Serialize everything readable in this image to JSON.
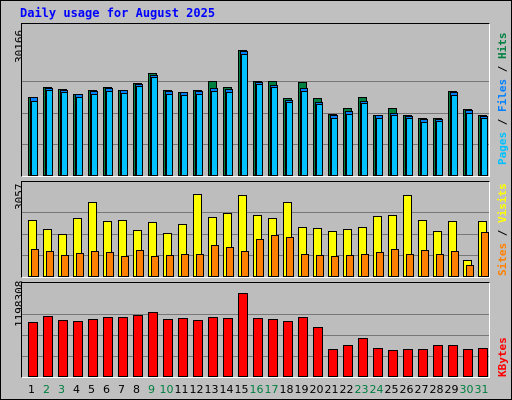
{
  "title": "Daily usage for August 2025",
  "colors": {
    "title": "#0000ff",
    "hits": "#008040",
    "files": "#0080ff",
    "pages": "#00c0ff",
    "visits": "#ffff00",
    "sites": "#ff8000",
    "kbytes": "#ff0000",
    "weekend_day": "#008040",
    "weekday": "#000000"
  },
  "legends": {
    "hits_panel": [
      {
        "text": "Pages",
        "color": "#00c0ff"
      },
      {
        "text": " / ",
        "color": "#000000"
      },
      {
        "text": "Files",
        "color": "#0080ff"
      },
      {
        "text": " / ",
        "color": "#000000"
      },
      {
        "text": "Hits",
        "color": "#008040"
      }
    ],
    "visits_panel": [
      {
        "text": "Sites",
        "color": "#ff8000"
      },
      {
        "text": " / ",
        "color": "#000000"
      },
      {
        "text": "Visits",
        "color": "#ffff00"
      }
    ],
    "kbytes_panel": [
      {
        "text": "KBytes",
        "color": "#ff0000"
      }
    ]
  },
  "chart_data": {
    "type": "bar",
    "title": "Daily usage for August 2025",
    "days": [
      "1",
      "2",
      "3",
      "4",
      "5",
      "6",
      "7",
      "8",
      "9",
      "10",
      "11",
      "12",
      "13",
      "14",
      "15",
      "16",
      "17",
      "18",
      "19",
      "20",
      "21",
      "22",
      "23",
      "24",
      "25",
      "26",
      "27",
      "28",
      "29",
      "30",
      "31"
    ],
    "weekend_days": [
      "2",
      "3",
      "9",
      "10",
      "16",
      "17",
      "23",
      "24",
      "30",
      "31"
    ],
    "panels": [
      {
        "name": "hits",
        "max_label": "30166",
        "ylim": [
          0,
          30166
        ],
        "series": [
          {
            "name": "Hits",
            "values": [
              19000,
              21200,
              20800,
              19700,
              20600,
              21300,
              20700,
              22300,
              24600,
              20600,
              20200,
              20500,
              22800,
              21200,
              30166,
              22800,
              22700,
              18600,
              22600,
              18600,
              14900,
              16300,
              18800,
              14700,
              16200,
              14700,
              13900,
              14000,
              20300,
              16000,
              14500
            ]
          },
          {
            "name": "Files",
            "values": [
              18800,
              21000,
              20500,
              19600,
              20400,
              21000,
              20500,
              22000,
              24200,
              20400,
              20000,
              20300,
              21000,
              20900,
              29900,
              22600,
              21800,
              18300,
              21000,
              17700,
              14600,
              15500,
              18000,
              14500,
              15200,
              14400,
              13600,
              13700,
              20100,
              15800,
              14300
            ]
          },
          {
            "name": "Pages",
            "values": [
              18000,
              20500,
              20000,
              18800,
              19700,
              20400,
              19800,
              21600,
              23800,
              19700,
              19400,
              19700,
              20300,
              20200,
              29300,
              22100,
              21200,
              17700,
              20400,
              17200,
              13900,
              14800,
              17400,
              13900,
              14500,
              13800,
              13000,
              13100,
              19400,
              15200,
              13800
            ]
          }
        ]
      },
      {
        "name": "visits",
        "max_label": "3057",
        "ylim": [
          0,
          3057
        ],
        "series": [
          {
            "name": "Visits",
            "values": [
              2040,
              1700,
              1520,
              2100,
              2650,
              2000,
              2040,
              1680,
              1940,
              1550,
              1880,
              2940,
              2130,
              2260,
              2900,
              2200,
              2100,
              2670,
              1760,
              1730,
              1640,
              1720,
              1780,
              2180,
              2200,
              2930,
              2040,
              1620,
              1990,
              620,
              2000
            ]
          },
          {
            "name": "Sites",
            "values": [
              1000,
              920,
              780,
              850,
              940,
              900,
              750,
              960,
              760,
              780,
              800,
              810,
              1150,
              1070,
              940,
              1350,
              1490,
              1420,
              800,
              790,
              760,
              790,
              800,
              880,
              990,
              800,
              950,
              810,
              930,
              440,
              1610
            ]
          }
        ]
      },
      {
        "name": "kbytes",
        "max_label": "1198308",
        "ylim": [
          0,
          1198308
        ],
        "series": [
          {
            "name": "KBytes",
            "values": [
              790000,
              870000,
              810000,
              800000,
              830000,
              860000,
              860000,
              880000,
              930000,
              830000,
              840000,
              820000,
              850000,
              840000,
              1198308,
              840000,
              830000,
              800000,
              850000,
              710000,
              400000,
              460000,
              560000,
              410000,
              380000,
              400000,
              400000,
              450000,
              460000,
              400000,
              420000
            ]
          }
        ]
      }
    ]
  }
}
